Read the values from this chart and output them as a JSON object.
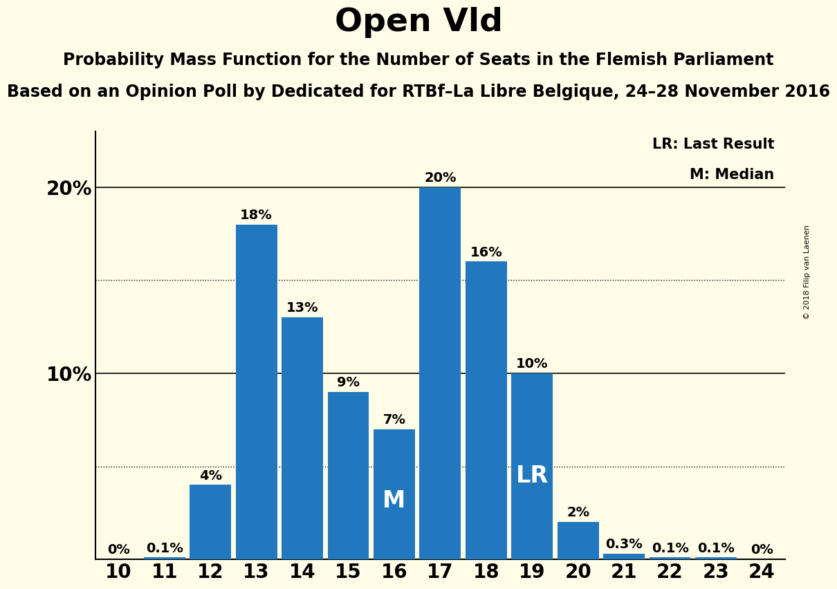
{
  "title": "Open Vld",
  "subtitle1": "Probability Mass Function for the Number of Seats in the Flemish Parliament",
  "subtitle2": "Based on an Opinion Poll by Dedicated for RTBf–La Libre Belgique, 24–28 November 2016",
  "copyright": "© 2018 Filip van Laenen",
  "seats": [
    10,
    11,
    12,
    13,
    14,
    15,
    16,
    17,
    18,
    19,
    20,
    21,
    22,
    23,
    24
  ],
  "probabilities": [
    0.0,
    0.1,
    4.0,
    18.0,
    13.0,
    9.0,
    7.0,
    20.0,
    16.0,
    10.0,
    2.0,
    0.3,
    0.1,
    0.1,
    0.0
  ],
  "bar_color": "#2178BE",
  "background_color": "#FFFDE8",
  "median_seat": 16,
  "last_result_seat": 19,
  "legend_lr": "LR: Last Result",
  "legend_m": "M: Median",
  "ylabel_fontsize": 20,
  "xlabel_fontsize": 20,
  "title_fontsize": 34,
  "subtitle1_fontsize": 17,
  "subtitle2_fontsize": 17,
  "bar_label_fontsize": 14,
  "annotation_fontsize": 24,
  "legend_fontsize": 15,
  "copyright_fontsize": 8
}
